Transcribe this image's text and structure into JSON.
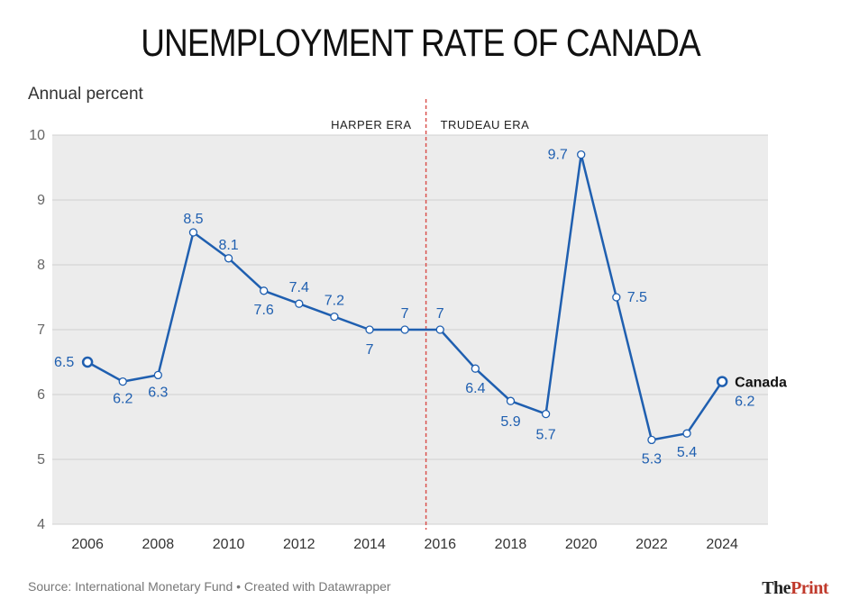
{
  "title": "UNEMPLOYMENT RATE OF CANADA",
  "subtitle": "Annual percent",
  "footer": {
    "source": "Source: International Monetary Fund • Created with Datawrapper",
    "brand_prefix": "The",
    "brand_suffix": "Print"
  },
  "colors": {
    "line": "#1f5fb0",
    "divider": "#d9534f",
    "grid": "#d0d0d0",
    "tick": "#555555",
    "label": "#1f5fb0"
  },
  "chart_data": {
    "type": "line",
    "title": "UNEMPLOYMENT RATE OF CANADA",
    "ylabel": "Annual percent",
    "xlabel": "",
    "ylim": [
      4,
      10
    ],
    "yticks": [
      4,
      5,
      6,
      7,
      8,
      9,
      10
    ],
    "xticks": [
      2006,
      2008,
      2010,
      2012,
      2014,
      2016,
      2018,
      2020,
      2022,
      2024
    ],
    "xlim": [
      2005,
      2025.3
    ],
    "grid": true,
    "annotations": [
      {
        "text": "HARPER ERA",
        "side": "left"
      },
      {
        "text": "TRUDEAU ERA",
        "side": "right"
      }
    ],
    "divider_x": 2015.6,
    "series": [
      {
        "name": "Canada",
        "x": [
          2006,
          2007,
          2008,
          2009,
          2010,
          2011,
          2012,
          2013,
          2014,
          2015,
          2016,
          2017,
          2018,
          2019,
          2020,
          2021,
          2022,
          2023,
          2024
        ],
        "values": [
          6.5,
          6.2,
          6.3,
          8.5,
          8.1,
          7.6,
          7.4,
          7.2,
          7,
          7,
          7,
          6.4,
          5.9,
          5.7,
          9.7,
          7.5,
          5.3,
          5.4,
          6.2
        ],
        "labels": [
          "6.5",
          "6.2",
          "6.3",
          "8.5",
          "8.1",
          "7.6",
          "7.4",
          "7.2",
          "7",
          "7",
          "7",
          "6.4",
          "5.9",
          "5.7",
          "9.7",
          "7.5",
          "5.3",
          "5.4",
          "6.2"
        ]
      }
    ]
  }
}
